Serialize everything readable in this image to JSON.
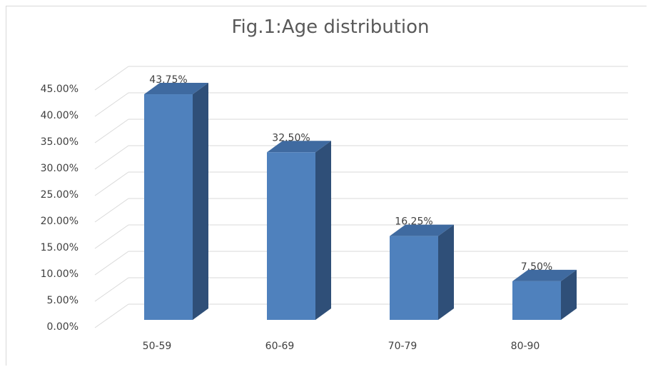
{
  "chart_data": {
    "type": "bar",
    "style": "3d-column",
    "title": "Fig.1:Age distribution",
    "categories": [
      "50-59",
      "60-69",
      "70-79",
      "80-90"
    ],
    "values": [
      43.75,
      32.5,
      16.25,
      7.5
    ],
    "value_labels": [
      "43.75%",
      "32.50%",
      "16.25%",
      "7.50%"
    ],
    "y_ticks": [
      "0.00%",
      "5.00%",
      "10.00%",
      "15.00%",
      "20.00%",
      "25.00%",
      "30.00%",
      "35.00%",
      "40.00%",
      "45.00%"
    ],
    "ylim": [
      0,
      45
    ],
    "grid": true,
    "legend": "none",
    "colors": {
      "front": "#4f81bd",
      "side": "#2f4f78",
      "top": "#3f6aa0",
      "grid": "#d9d9d9"
    }
  }
}
